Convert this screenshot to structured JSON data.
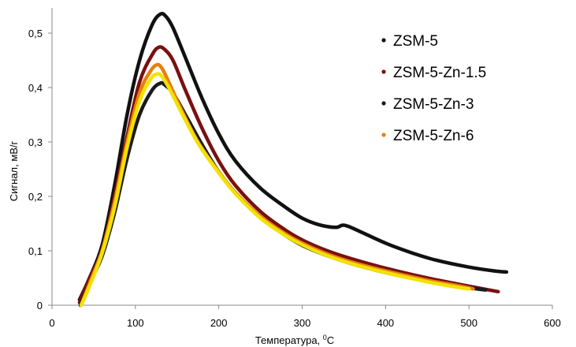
{
  "chart_data": {
    "type": "line",
    "title": "",
    "xlabel": "Температура, ",
    "xlabel_unit_sup": "0",
    "xlabel_unit": "C",
    "ylabel": "Сигнал, мВ/г",
    "xlim": [
      0,
      600
    ],
    "ylim": [
      0,
      0.55
    ],
    "x_ticks": [
      0,
      100,
      200,
      300,
      400,
      500,
      600
    ],
    "x_tick_labels": [
      "0",
      "100",
      "200",
      "300",
      "400",
      "500",
      "600"
    ],
    "y_ticks": [
      0,
      0.1,
      0.2,
      0.3,
      0.4,
      0.5
    ],
    "y_tick_labels": [
      "0",
      "0,1",
      "0,2",
      "0,3",
      "0,4",
      "0,5"
    ],
    "grid": false,
    "legend_position": "top-right",
    "series": [
      {
        "name": "ZSM-5",
        "color": "#111111",
        "x": [
          33,
          45,
          60,
          75,
          90,
          105,
          120,
          130,
          137,
          145,
          160,
          180,
          200,
          220,
          250,
          280,
          300,
          320,
          340,
          348,
          355,
          370,
          400,
          430,
          460,
          500,
          530,
          545
        ],
        "y": [
          0.01,
          0.05,
          0.11,
          0.22,
          0.35,
          0.45,
          0.515,
          0.535,
          0.53,
          0.51,
          0.455,
          0.38,
          0.315,
          0.265,
          0.215,
          0.18,
          0.16,
          0.148,
          0.143,
          0.147,
          0.145,
          0.135,
          0.114,
          0.097,
          0.083,
          0.07,
          0.063,
          0.061
        ]
      },
      {
        "name": "ZSM-5-Zn-1.5",
        "color": "#7a1010",
        "x": [
          33,
          45,
          60,
          75,
          90,
          105,
          120,
          128,
          135,
          145,
          160,
          180,
          200,
          220,
          250,
          280,
          300,
          330,
          360,
          400,
          450,
          500,
          535
        ],
        "y": [
          0.005,
          0.05,
          0.1,
          0.2,
          0.31,
          0.41,
          0.46,
          0.474,
          0.47,
          0.45,
          0.395,
          0.325,
          0.265,
          0.22,
          0.172,
          0.138,
          0.12,
          0.1,
          0.085,
          0.068,
          0.05,
          0.035,
          0.025
        ]
      },
      {
        "name": "ZSM-5-Zn-3",
        "color": "#1a1a1a",
        "x": [
          34,
          45,
          60,
          75,
          90,
          105,
          120,
          130,
          135,
          145,
          160,
          180,
          200,
          220,
          250,
          280,
          300,
          330,
          360,
          400,
          450,
          500,
          520
        ],
        "y": [
          0.0,
          0.04,
          0.09,
          0.17,
          0.27,
          0.35,
          0.395,
          0.408,
          0.405,
          0.39,
          0.35,
          0.295,
          0.245,
          0.206,
          0.162,
          0.128,
          0.11,
          0.091,
          0.076,
          0.06,
          0.044,
          0.032,
          0.028
        ]
      },
      {
        "name": "ZSM-5-Zn-6",
        "color": "#e8800a",
        "x": [
          35,
          45,
          60,
          75,
          90,
          105,
          118,
          126,
          132,
          140,
          155,
          175,
          200,
          220,
          250,
          280,
          300,
          330,
          360,
          400,
          450,
          490,
          505
        ],
        "y": [
          0.0,
          0.04,
          0.1,
          0.19,
          0.3,
          0.39,
          0.43,
          0.442,
          0.435,
          0.41,
          0.36,
          0.3,
          0.245,
          0.207,
          0.163,
          0.131,
          0.114,
          0.094,
          0.079,
          0.063,
          0.046,
          0.035,
          0.03
        ]
      },
      {
        "name": "",
        "color": "#f2e200",
        "x": [
          35,
          45,
          60,
          75,
          90,
          105,
          118,
          126,
          132,
          140,
          155,
          175,
          200,
          220,
          250,
          280,
          300,
          330,
          360,
          400,
          450,
          490,
          500
        ],
        "y": [
          0.0,
          0.035,
          0.095,
          0.18,
          0.29,
          0.375,
          0.415,
          0.425,
          0.42,
          0.4,
          0.355,
          0.298,
          0.243,
          0.205,
          0.16,
          0.128,
          0.111,
          0.091,
          0.076,
          0.06,
          0.043,
          0.032,
          0.03
        ]
      }
    ],
    "legend": [
      {
        "label": "ZSM-5",
        "color": "#111111"
      },
      {
        "label": "ZSM-5-Zn-1.5",
        "color": "#7a1010"
      },
      {
        "label": "ZSM-5-Zn-3",
        "color": "#1a1a1a"
      },
      {
        "label": "ZSM-5-Zn-6",
        "color": "#e8800a"
      }
    ]
  }
}
